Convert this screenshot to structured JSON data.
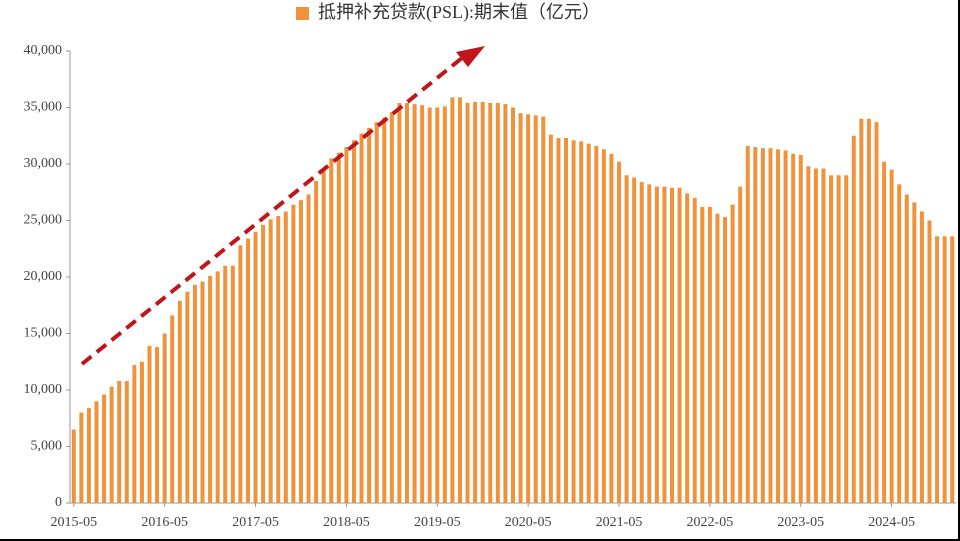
{
  "chart_data": {
    "type": "bar",
    "categories": [
      "2015-05",
      null,
      null,
      null,
      null,
      null,
      null,
      null,
      null,
      null,
      null,
      null,
      "2016-05",
      null,
      null,
      null,
      null,
      null,
      null,
      null,
      null,
      null,
      null,
      null,
      "2017-05",
      null,
      null,
      null,
      null,
      null,
      null,
      null,
      null,
      null,
      null,
      null,
      "2018-05",
      null,
      null,
      null,
      null,
      null,
      null,
      null,
      null,
      null,
      null,
      null,
      "2019-05",
      null,
      null,
      null,
      null,
      null,
      null,
      null,
      null,
      null,
      null,
      null,
      "2020-05",
      null,
      null,
      null,
      null,
      null,
      null,
      null,
      null,
      null,
      null,
      null,
      "2021-05",
      null,
      null,
      null,
      null,
      null,
      null,
      null,
      null,
      null,
      null,
      null,
      "2022-05",
      null,
      null,
      null,
      null,
      null,
      null,
      null,
      null,
      null,
      null,
      null,
      "2023-05",
      null,
      null,
      null,
      null,
      null,
      null,
      null,
      null,
      null,
      null,
      null,
      "2024-05",
      null,
      null,
      null,
      null,
      null,
      null,
      null,
      null
    ],
    "series": [
      {
        "name": "抵押补充贷款(PSL):期末值（亿元）",
        "color": "#f0923b",
        "values": [
          6500,
          8000,
          8400,
          9000,
          9600,
          10300,
          10800,
          10800,
          12200,
          12500,
          13900,
          13800,
          15000,
          16600,
          17900,
          18700,
          19300,
          19600,
          20100,
          20500,
          21000,
          21000,
          22800,
          23400,
          24000,
          24600,
          25100,
          25400,
          25800,
          26400,
          26800,
          27300,
          28500,
          29400,
          30500,
          31000,
          31500,
          32100,
          32700,
          33200,
          33700,
          34100,
          34600,
          35400,
          35400,
          35300,
          35200,
          35000,
          35000,
          35100,
          35900,
          35900,
          35400,
          35500,
          35500,
          35400,
          35400,
          35300,
          35000,
          34500,
          34400,
          34300,
          34200,
          32600,
          32300,
          32300,
          32100,
          32000,
          31800,
          31600,
          31300,
          30900,
          30200,
          29000,
          28800,
          28400,
          28200,
          28000,
          28000,
          27900,
          27900,
          27400,
          27000,
          26200,
          26200,
          25600,
          25300,
          26400,
          28000,
          31600,
          31500,
          31400,
          31400,
          31300,
          31200,
          30900,
          30800,
          29800,
          29600,
          29600,
          29000,
          29000,
          29000,
          32500,
          34000,
          34000,
          33700,
          30200,
          29500,
          28200,
          27300,
          26600,
          25800,
          25000,
          23600,
          23600,
          23600
        ]
      }
    ],
    "ylim": [
      0,
      40000
    ],
    "yticks": [
      0,
      {
        "value": 5000,
        "label": "5,000"
      },
      {
        "value": 10000,
        "label": "10,000"
      },
      {
        "value": 15000,
        "label": "15,000"
      },
      {
        "value": 20000,
        "label": "20,000"
      },
      {
        "value": 25000,
        "label": "25,000"
      },
      {
        "value": 30000,
        "label": "30,000"
      },
      {
        "value": 35000,
        "label": "35,000"
      },
      {
        "value": 40000,
        "label": "40,000"
      }
    ],
    "legend": "top"
  }
}
